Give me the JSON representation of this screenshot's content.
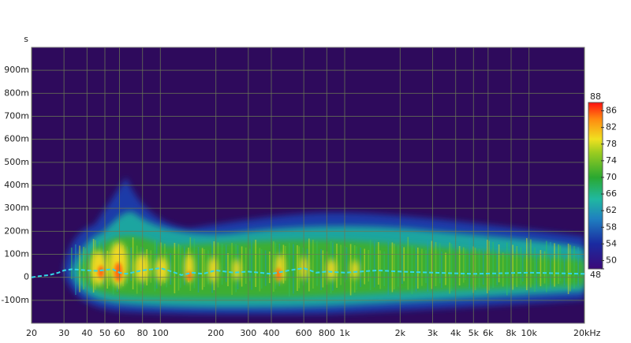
{
  "chart_data": {
    "type": "spectrogram",
    "y_label": "s",
    "xscale": "log",
    "xlim": [
      20,
      20000
    ],
    "ylim": [
      -0.2,
      1.0
    ],
    "xticks": [
      20,
      30,
      40,
      50,
      60,
      80,
      100,
      200,
      300,
      400,
      600,
      800,
      {
        "value": 1000,
        "label": "1k"
      },
      {
        "value": 2000,
        "label": "2k"
      },
      {
        "value": 3000,
        "label": "3k"
      },
      {
        "value": 4000,
        "label": "4k"
      },
      {
        "value": 5000,
        "label": "5k"
      },
      {
        "value": 6000,
        "label": "6k"
      },
      {
        "value": 8000,
        "label": "8k"
      },
      {
        "value": 10000,
        "label": "10k"
      },
      {
        "value": 20000,
        "label": "20kHz"
      }
    ],
    "yticks": [
      {
        "value": -0.1,
        "label": "-100m"
      },
      0,
      {
        "value": 0.1,
        "label": "100m"
      },
      {
        "value": 0.2,
        "label": "200m"
      },
      {
        "value": 0.3,
        "label": "300m"
      },
      {
        "value": 0.4,
        "label": "400m"
      },
      {
        "value": 0.5,
        "label": "500m"
      },
      {
        "value": 0.6,
        "label": "600m"
      },
      {
        "value": 0.7,
        "label": "700m"
      },
      {
        "value": 0.8,
        "label": "800m"
      },
      {
        "value": 0.9,
        "label": "900m"
      }
    ],
    "grid": true,
    "colorbar": {
      "lim": [
        48,
        88
      ],
      "ticks": [
        88,
        86,
        82,
        78,
        74,
        70,
        66,
        62,
        58,
        54,
        50,
        48
      ]
    },
    "series": [
      {
        "color": "#33d6e6",
        "x": [
          20,
          22,
          25,
          28,
          30,
          33,
          36,
          40,
          45,
          50,
          55,
          60,
          65,
          70,
          80,
          90,
          100,
          110,
          120,
          130,
          150,
          170,
          200,
          250,
          300,
          400,
          500,
          600,
          700,
          800,
          1000,
          1500,
          2000,
          3000,
          5000,
          10000,
          20000
        ],
        "values": [
          0,
          0.005,
          0.01,
          0.02,
          0.03,
          0.035,
          0.033,
          0.03,
          0.028,
          0.032,
          0.035,
          0.02,
          0.015,
          0.02,
          0.03,
          0.035,
          0.04,
          0.03,
          0.02,
          0.01,
          0.02,
          0.015,
          0.03,
          0.02,
          0.025,
          0.015,
          0.03,
          0.04,
          0.02,
          0.025,
          0.02,
          0.03,
          0.025,
          0.02,
          0.015,
          0.02,
          0.015
        ]
      }
    ]
  }
}
